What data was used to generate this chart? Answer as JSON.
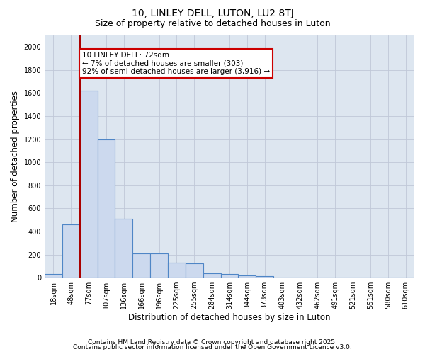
{
  "title1": "10, LINLEY DELL, LUTON, LU2 8TJ",
  "title2": "Size of property relative to detached houses in Luton",
  "xlabel": "Distribution of detached houses by size in Luton",
  "ylabel": "Number of detached properties",
  "bin_labels": [
    "18sqm",
    "48sqm",
    "77sqm",
    "107sqm",
    "136sqm",
    "166sqm",
    "196sqm",
    "225sqm",
    "255sqm",
    "284sqm",
    "314sqm",
    "344sqm",
    "373sqm",
    "403sqm",
    "432sqm",
    "462sqm",
    "491sqm",
    "521sqm",
    "551sqm",
    "580sqm",
    "610sqm"
  ],
  "bar_heights": [
    30,
    460,
    1620,
    1200,
    510,
    210,
    210,
    130,
    125,
    40,
    30,
    20,
    15,
    3,
    3,
    2,
    2,
    1,
    1,
    1,
    1
  ],
  "bar_color": "#ccd9ee",
  "bar_edge_color": "#4f86c6",
  "property_line_x": 1.5,
  "annotation_text": "10 LINLEY DELL: 72sqm\n← 7% of detached houses are smaller (303)\n92% of semi-detached houses are larger (3,916) →",
  "annotation_box_color": "white",
  "annotation_box_edge": "#cc0000",
  "red_line_color": "#aa0000",
  "ylim": [
    0,
    2100
  ],
  "yticks": [
    0,
    200,
    400,
    600,
    800,
    1000,
    1200,
    1400,
    1600,
    1800,
    2000
  ],
  "grid_color": "#c0c8d8",
  "bg_color": "#dde6f0",
  "footer1": "Contains HM Land Registry data © Crown copyright and database right 2025.",
  "footer2": "Contains public sector information licensed under the Open Government Licence v3.0.",
  "title_fontsize": 10,
  "subtitle_fontsize": 9,
  "axis_label_fontsize": 8.5,
  "tick_fontsize": 7,
  "footer_fontsize": 6.5,
  "annotation_fontsize": 7.5
}
